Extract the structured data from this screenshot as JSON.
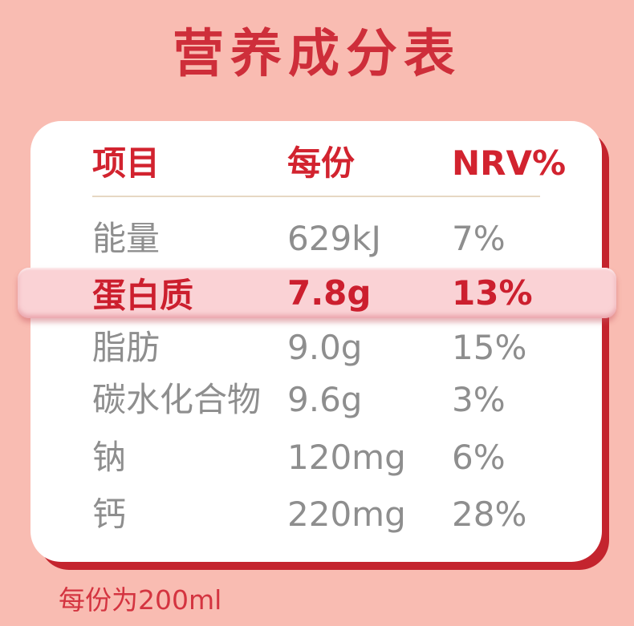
{
  "title": "营养成分表",
  "table": {
    "headers": [
      "项目",
      "每份",
      "NRV%"
    ],
    "rows": [
      {
        "label": "能量",
        "per_serving": "629kJ",
        "nrv": "7%",
        "highlighted": false
      },
      {
        "label": "蛋白质",
        "per_serving": "7.8g",
        "nrv": "13%",
        "highlighted": true
      },
      {
        "label": "脂肪",
        "per_serving": "9.0g",
        "nrv": "15%",
        "highlighted": false
      },
      {
        "label": "碳水化合物",
        "per_serving": "9.6g",
        "nrv": "3%",
        "highlighted": false
      },
      {
        "label": "钠",
        "per_serving": "120mg",
        "nrv": "6%",
        "highlighted": false
      },
      {
        "label": "钙",
        "per_serving": "220mg",
        "nrv": "28%",
        "highlighted": false
      }
    ]
  },
  "footnote": "每份为200ml",
  "colors": {
    "background": "#F9BCB2",
    "card": "#FFFFFF",
    "accent_red": "#D2232F",
    "border_red": "#C4242E",
    "highlight_band": "#FAD2D5",
    "muted_text": "#8E8E8E",
    "divider": "#E6D8C3"
  }
}
